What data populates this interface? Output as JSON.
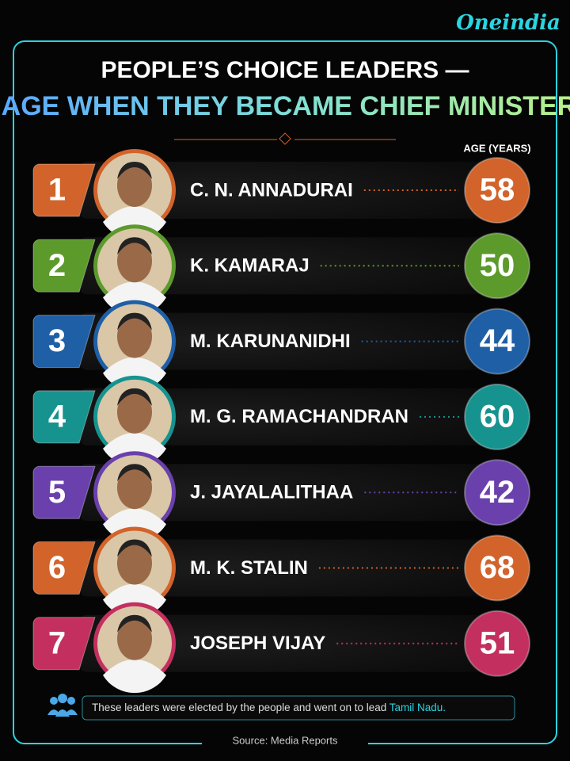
{
  "brand": "Oneindia",
  "header": {
    "title_line1": "PEOPLE’S CHOICE LEADERS —",
    "title_line2": "AGE WHEN THEY BECAME CHIEF MINISTER"
  },
  "column_label": "AGE (YEARS)",
  "rows": [
    {
      "rank": 1,
      "name": "C. N. ANNADURAI",
      "age": 58,
      "color": "#d2632a"
    },
    {
      "rank": 2,
      "name": "K. KAMARAJ",
      "age": 50,
      "color": "#5c9a2c"
    },
    {
      "rank": 3,
      "name": "M. KARUNANIDHI",
      "age": 44,
      "color": "#1f5fa6"
    },
    {
      "rank": 4,
      "name": "M. G. RAMACHANDRAN",
      "age": 60,
      "color": "#17938f"
    },
    {
      "rank": 5,
      "name": "J. JAYALALITHAA",
      "age": 42,
      "color": "#6a40ad"
    },
    {
      "rank": 6,
      "name": "M. K. STALIN",
      "age": 68,
      "color": "#d2632a"
    },
    {
      "rank": 7,
      "name": "JOSEPH VIJAY",
      "age": 51,
      "color": "#c3305f"
    }
  ],
  "footer": {
    "note": "These leaders were elected by the people and went on to lead",
    "note_highlight": "Tamil Nadu.",
    "source": "Source: Media Reports"
  }
}
